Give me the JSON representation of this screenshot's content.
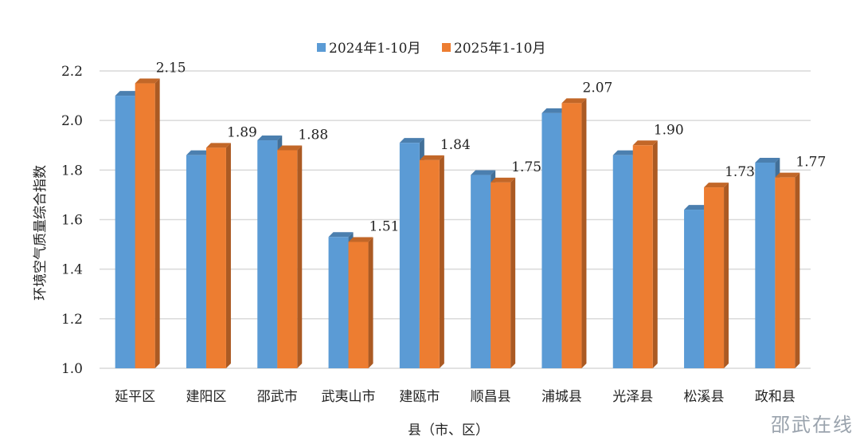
{
  "chart_data": {
    "type": "bar",
    "xlabel": "县（市、区）",
    "ylabel": "环境空气质量综合指数",
    "ylim": [
      1.0,
      2.2
    ],
    "yticks": [
      "1.0",
      "1.2",
      "1.4",
      "1.6",
      "1.8",
      "2.0",
      "2.2"
    ],
    "grid": true,
    "legend_position": "top",
    "categories": [
      "延平区",
      "建阳区",
      "邵武市",
      "武夷山市",
      "建瓯市",
      "顺昌县",
      "浦城县",
      "光泽县",
      "松溪县",
      "政和县"
    ],
    "series": [
      {
        "name": "2024年1-10月",
        "color": "#5b9bd5",
        "values": [
          2.1,
          1.86,
          1.92,
          1.53,
          1.91,
          1.78,
          2.03,
          1.86,
          1.64,
          1.83
        ]
      },
      {
        "name": "2025年1-10月",
        "color": "#ed7d31",
        "values": [
          2.15,
          1.89,
          1.88,
          1.51,
          1.84,
          1.75,
          2.07,
          1.9,
          1.73,
          1.77
        ]
      }
    ],
    "data_labels": [
      "2.15",
      "1.89",
      "1.88",
      "1.51",
      "1.84",
      "1.75",
      "2.07",
      "1.90",
      "1.73",
      "1.77"
    ]
  },
  "watermark": "邵武在线"
}
